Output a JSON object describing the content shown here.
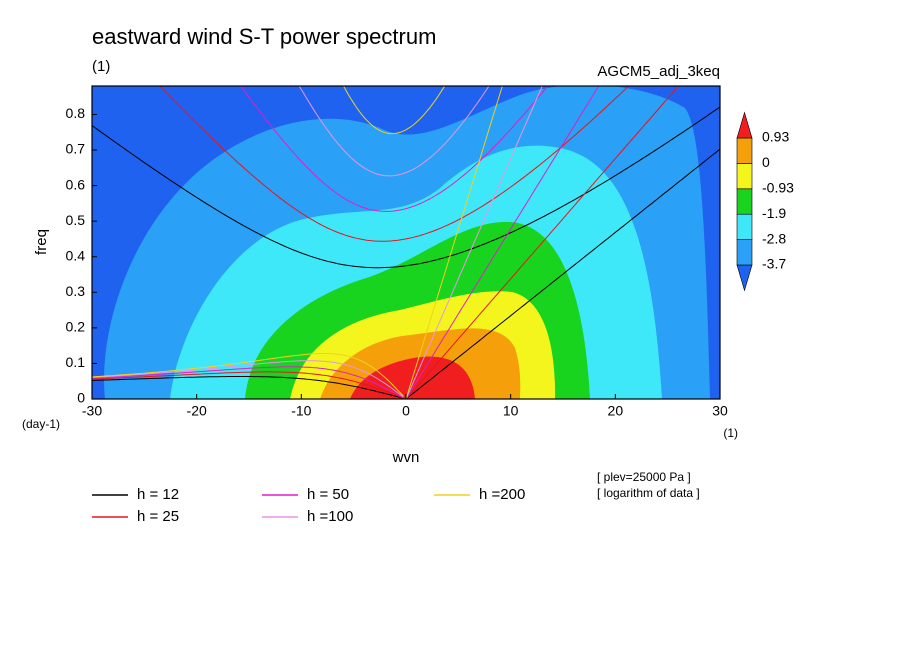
{
  "chart_data": {
    "type": "contour",
    "title": "eastward wind S-T power spectrum",
    "subtitle": "(1)",
    "run_label": "AGCM5_adj_3keq",
    "x_label": "wvn",
    "y_label": "freq",
    "x_unit": "(1)",
    "y_unit": "(day-1)",
    "xlim": [
      -30,
      30
    ],
    "xticks": [
      -30,
      -20,
      -10,
      0,
      10,
      20,
      30
    ],
    "ylim": [
      0,
      0.88
    ],
    "yticks": [
      0.0,
      0.1,
      0.2,
      0.3,
      0.4,
      0.5,
      0.6,
      0.7,
      0.8
    ],
    "levels": [
      -3.7,
      -2.8,
      -1.9,
      -0.93,
      0,
      0.93
    ],
    "colors": [
      "#1f62f0",
      "#2aa0f6",
      "#3ee8f8",
      "#18d41e",
      "#f5f51e",
      "#f5a00a",
      "#f01e1e"
    ],
    "dispersion": [
      {
        "name": "h = 12",
        "h": 12,
        "color": "#000000"
      },
      {
        "name": "h = 25",
        "h": 25,
        "color": "#e8141e"
      },
      {
        "name": "h = 50",
        "h": 50,
        "color": "#e01ec8"
      },
      {
        "name": "h =100",
        "h": 100,
        "color": "#e696e6"
      },
      {
        "name": "h =200",
        "h": 200,
        "color": "#f0d21e"
      }
    ],
    "notes": [
      "[ plev=25000 Pa ]",
      "[ logarithm of data ]"
    ]
  }
}
